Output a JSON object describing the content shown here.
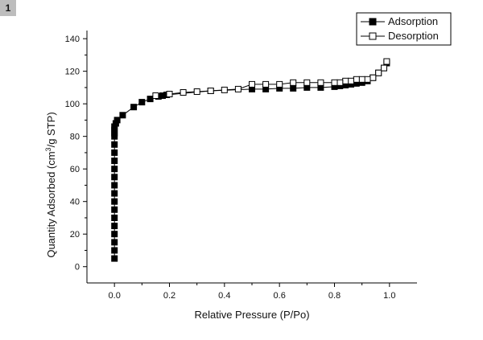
{
  "panel_label": "1",
  "chart_data": {
    "type": "scatter",
    "xlabel": "Relative Pressure (P/Po)",
    "ylabel_parts": [
      "Quantity Adsorbed (cm",
      "3",
      "/g STP)"
    ],
    "xlim": [
      -0.1,
      1.1
    ],
    "ylim": [
      -10,
      145
    ],
    "xticks": [
      0.0,
      0.2,
      0.4,
      0.6,
      0.8,
      1.0
    ],
    "xtick_labels": [
      "0.0",
      "0.2",
      "0.4",
      "0.6",
      "0.8",
      "1.0"
    ],
    "yticks": [
      0,
      20,
      40,
      60,
      80,
      100,
      120,
      140
    ],
    "ytick_labels": [
      "0",
      "20",
      "40",
      "60",
      "80",
      "100",
      "120",
      "140"
    ],
    "grid": false,
    "legend_position": "top-right",
    "series": [
      {
        "name": "Adsorption",
        "marker": "filled-square",
        "color": "#000000",
        "x": [
          0.0,
          0.0,
          0.0,
          0.0,
          0.0,
          0.0,
          0.0,
          0.0,
          0.0,
          0.0,
          0.0,
          0.0,
          0.0,
          0.0,
          0.0,
          0.0,
          0.0,
          0.0,
          0.0,
          0.005,
          0.01,
          0.03,
          0.07,
          0.1,
          0.13,
          0.16,
          0.175,
          0.19,
          0.35,
          0.5,
          0.55,
          0.6,
          0.65,
          0.7,
          0.75,
          0.8,
          0.82,
          0.84,
          0.86,
          0.88,
          0.9,
          0.92,
          0.94,
          0.96,
          0.98,
          0.99
        ],
        "y": [
          5,
          10,
          15,
          20,
          25,
          30,
          35,
          40,
          45,
          50,
          55,
          60,
          65,
          70,
          75,
          80,
          82,
          84,
          86,
          88,
          90,
          93,
          98,
          101,
          103,
          104.5,
          105,
          105.5,
          108,
          109,
          109,
          109.5,
          109.5,
          110,
          110,
          110.5,
          111,
          111.5,
          112,
          112.5,
          113,
          114,
          116,
          119,
          122,
          125
        ]
      },
      {
        "name": "Desorption",
        "marker": "open-square",
        "color": "#000000",
        "x": [
          0.99,
          0.98,
          0.96,
          0.94,
          0.92,
          0.9,
          0.88,
          0.86,
          0.84,
          0.82,
          0.8,
          0.75,
          0.7,
          0.65,
          0.6,
          0.55,
          0.5,
          0.45,
          0.4,
          0.35,
          0.3,
          0.25,
          0.2,
          0.15
        ],
        "y": [
          126,
          122,
          119,
          116,
          115,
          115,
          115,
          114,
          114,
          113,
          113,
          113,
          113,
          113,
          112,
          112,
          112,
          109,
          108.5,
          108,
          107.5,
          107,
          106,
          105
        ]
      }
    ]
  }
}
